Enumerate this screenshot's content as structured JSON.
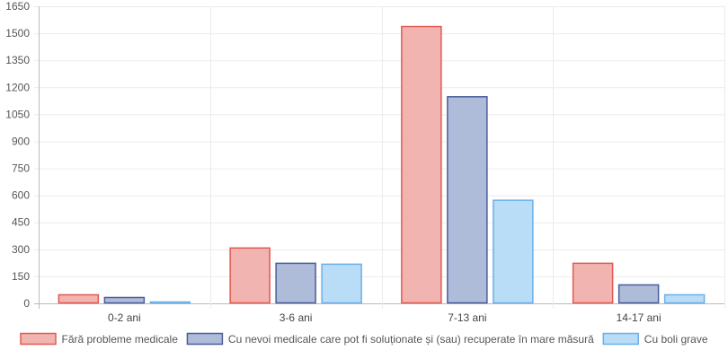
{
  "chart_data": {
    "type": "bar",
    "categories": [
      "0-2 ani",
      "3-6 ani",
      "7-13 ani",
      "14-17 ani"
    ],
    "series": [
      {
        "name": "Fără probleme medicale",
        "values": [
          50,
          310,
          1540,
          225
        ],
        "fill": "#f2b4b0",
        "stroke": "#e05a52"
      },
      {
        "name": "Cu nevoi medicale care pot fi soluționate și (sau) recuperate în mare măsură",
        "values": [
          35,
          225,
          1150,
          105
        ],
        "fill": "#aebbd9",
        "stroke": "#4a5f99"
      },
      {
        "name": "Cu boli grave",
        "values": [
          10,
          220,
          575,
          50
        ],
        "fill": "#b9dcf7",
        "stroke": "#6bb0e8"
      }
    ],
    "ylim": [
      0,
      1650
    ],
    "yticks": [
      0,
      150,
      300,
      450,
      600,
      750,
      900,
      1050,
      1200,
      1350,
      1500,
      1650
    ],
    "grid": true,
    "legend_position": "bottom"
  }
}
